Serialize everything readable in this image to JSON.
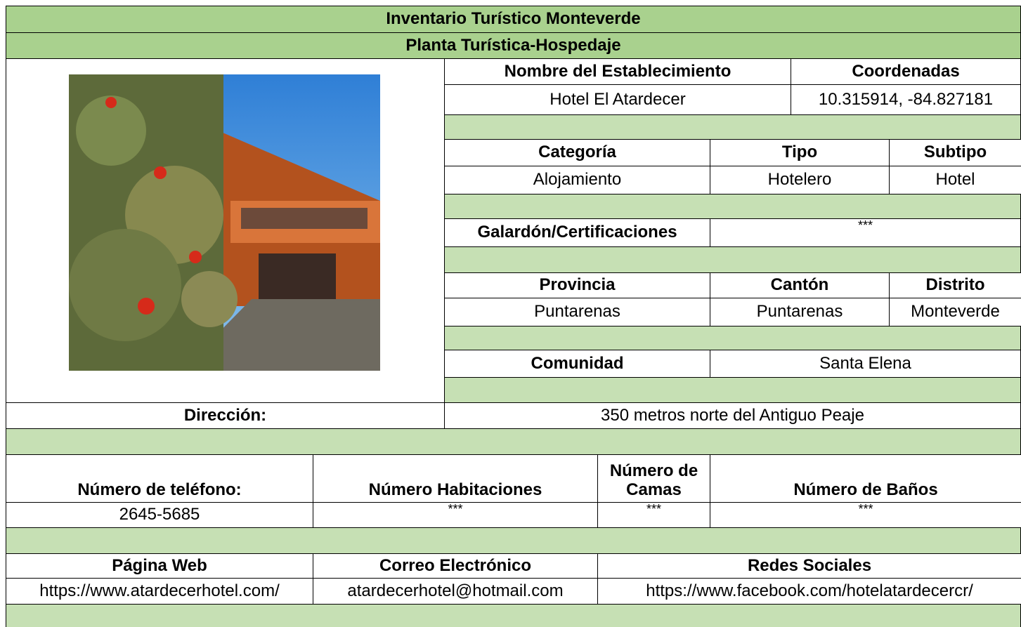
{
  "header": {
    "title": "Inventario Turístico Monteverde",
    "subtitle": "Planta Turística-Hospedaje"
  },
  "establishment": {
    "name_label": "Nombre del Establecimiento",
    "name": "Hotel El Atardecer",
    "coordinates_label": "Coordenadas",
    "coordinates": "10.315914, -84.827181"
  },
  "classification": {
    "labels": [
      "Categoría",
      "Tipo",
      "Subtipo"
    ],
    "values": [
      "Alojamiento",
      "Hotelero",
      "Hotel"
    ]
  },
  "awards": {
    "label": "Galardón/Certificaciones",
    "value": "***"
  },
  "location": {
    "labels": [
      "Provincia",
      "Cantón",
      "Distrito"
    ],
    "values": [
      "Puntarenas",
      "Puntarenas",
      "Monteverde"
    ]
  },
  "community": {
    "label": "Comunidad",
    "value": "Santa Elena"
  },
  "address": {
    "label": "Dirección:",
    "value": "350 metros norte del Antiguo Peaje"
  },
  "capacity": {
    "labels": [
      "Número de teléfono:",
      "Número Habitaciones",
      "Número de Camas",
      "Número de Baños"
    ],
    "values": [
      "2645-5685",
      "***",
      "***",
      "***"
    ]
  },
  "contact": {
    "labels": [
      "Página Web",
      "Correo Electrónico",
      "Redes Sociales"
    ],
    "values": [
      "https://www.atardecerhotel.com/",
      "atardecerhotel@hotmail.com",
      "https://www.facebook.com/hotelatardecercr/"
    ]
  }
}
